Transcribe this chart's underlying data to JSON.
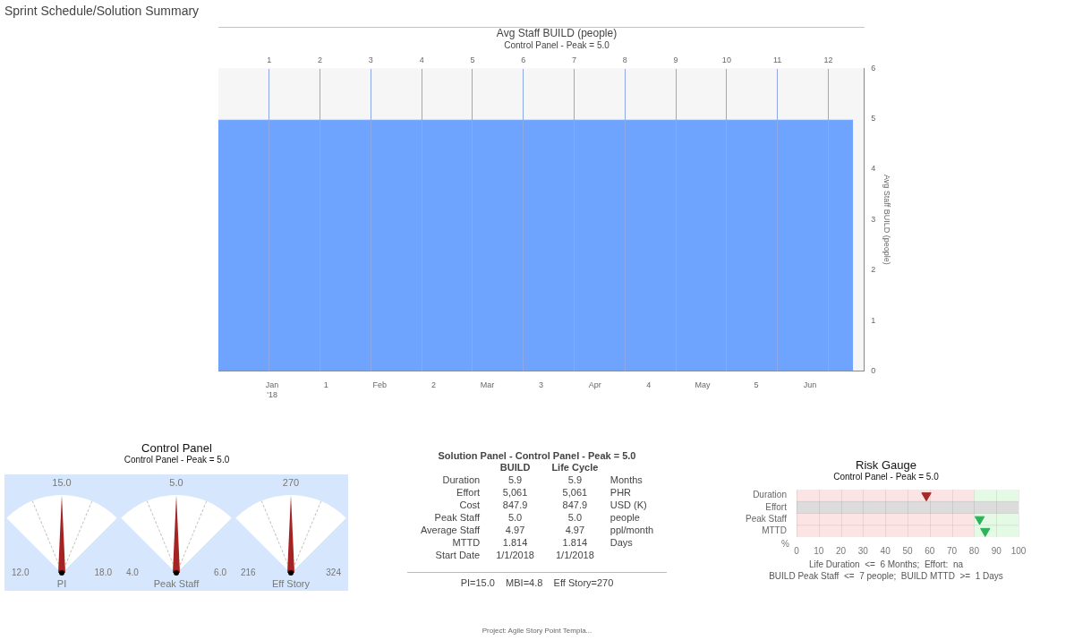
{
  "chart_data": [
    {
      "type": "area",
      "title": "Avg Staff BUILD (people)",
      "subtitle": "Control Panel - Peak = 5.0",
      "ylabel": "Avg Staff BUILD (people)",
      "x": [
        0,
        5.9
      ],
      "series": [
        {
          "color": "#6ea4fd",
          "values": [
            4.97,
            4.97
          ]
        }
      ],
      "xlim": [
        0,
        6
      ],
      "xticks": [
        {
          "value": 0.5,
          "label": "Jan\n'18"
        },
        1,
        {
          "value": 1.5,
          "label": "Feb"
        },
        2,
        {
          "value": 2.5,
          "label": "Mar"
        },
        3,
        {
          "value": 3.5,
          "label": "Apr"
        },
        4,
        {
          "value": 4.5,
          "label": "May"
        },
        5,
        {
          "value": 5.5,
          "label": "Jun"
        }
      ],
      "x2lim": [
        0,
        12.7
      ],
      "x2ticks": [
        1,
        2,
        3,
        4,
        5,
        6,
        7,
        8,
        9,
        10,
        11,
        12
      ],
      "ylim": [
        0,
        6
      ],
      "yticks": [
        0,
        1,
        2,
        3,
        4,
        5,
        6
      ],
      "grid": "x",
      "annotations": [
        "Sprint Schedule/Solution Summary",
        "Project: Agile Story Point Templa..."
      ]
    },
    {
      "type": "other",
      "title": "Control Panel",
      "subtitle": "Control Panel - Peak = 5.0"
    },
    {
      "type": "other",
      "xlabel": "PI",
      "annotations": [
        "15.0",
        "12.0",
        "18.0"
      ]
    },
    {
      "type": "other",
      "xlabel": "Peak Staff",
      "annotations": [
        "5.0",
        "4.0",
        "6.0"
      ]
    },
    {
      "type": "other",
      "xlabel": "Eff Story",
      "annotations": [
        "270",
        "216",
        "324"
      ]
    },
    {
      "type": "other",
      "title": "Solution Panel - Control Panel - Peak = 5.0",
      "categories": [
        "BUILD",
        "Life Cycle"
      ],
      "y_categories": [
        "Duration",
        "Effort",
        "Cost",
        "Peak Staff",
        "Average Staff",
        "MTTD",
        "Start Date"
      ],
      "cell_labels": [
        [
          "5.9",
          "5.9"
        ],
        [
          "5,061",
          "5,061"
        ],
        [
          "847.9",
          "847.9"
        ],
        [
          "5.0",
          "5.0"
        ],
        [
          "4.97",
          "4.97"
        ],
        [
          "1.814",
          "1.814"
        ],
        [
          "1/1/2018",
          "1/1/2018"
        ]
      ],
      "y2_categories": [
        "Months",
        "PHR",
        "USD (K)",
        "people",
        "ppl/month",
        "Days",
        null
      ],
      "annotations": [
        "PI=15.0    MBI=4.8    Eff Story=270"
      ]
    },
    {
      "type": "scatter",
      "title": "Risk Gauge",
      "subtitle": "Control Panel - Peak = 5.0",
      "orientation": "horizontal",
      "categories": [
        "Duration",
        "Effort",
        "Peak Staff",
        "MTTD"
      ],
      "values": [
        58.5,
        null,
        82.5,
        85
      ],
      "colors": [
        "#a52a2a",
        null,
        "#2db35a",
        "#2db35a"
      ],
      "marker": "triangle",
      "xlabel": "%",
      "xlim": [
        0,
        100
      ],
      "xticks": [
        0,
        10,
        20,
        30,
        40,
        50,
        60,
        70,
        80,
        90,
        100
      ],
      "grid": true,
      "bands": [
        {
          "axis": "x",
          "from": 0,
          "to": 80,
          "color": "#fde4e4"
        },
        {
          "axis": "x",
          "from": 80,
          "to": 100,
          "color": "#e4fae4"
        },
        {
          "axis": "y",
          "from": "Effort",
          "to": "Effort",
          "color": "#dcdcdc"
        }
      ],
      "annotations": [
        "Life Duration  <=  6 Months;  Effort:  na",
        "BUILD Peak Staff  <=  7 people;  BUILD MTTD  >=  1 Days"
      ]
    }
  ]
}
